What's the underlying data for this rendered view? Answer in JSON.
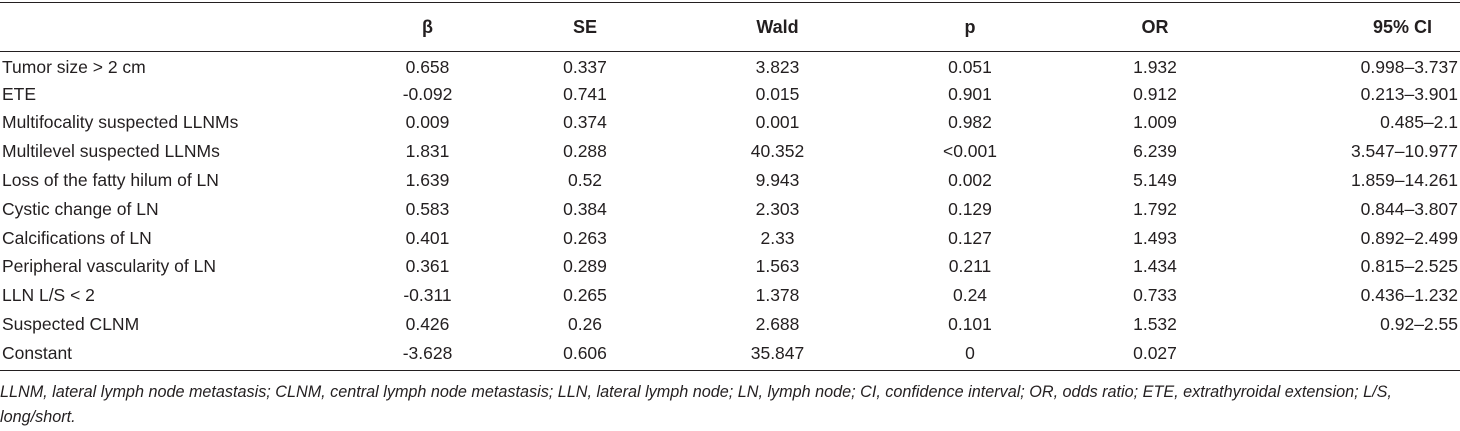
{
  "table": {
    "headers": [
      "",
      "β",
      "SE",
      "Wald",
      "p",
      "OR",
      "95% CI"
    ],
    "rows": [
      {
        "label": "Tumor size > 2 cm",
        "beta": "0.658",
        "se": "0.337",
        "wald": "3.823",
        "p": "0.051",
        "or": "1.932",
        "ci": "0.998–3.737"
      },
      {
        "label": "ETE",
        "beta": "-0.092",
        "se": "0.741",
        "wald": "0.015",
        "p": "0.901",
        "or": "0.912",
        "ci": "0.213–3.901"
      },
      {
        "label": "Multifocality suspected LLNMs",
        "beta": "0.009",
        "se": "0.374",
        "wald": "0.001",
        "p": "0.982",
        "or": "1.009",
        "ci": "0.485–2.1"
      },
      {
        "label": "Multilevel suspected LLNMs",
        "beta": "1.831",
        "se": "0.288",
        "wald": "40.352",
        "p": "<0.001",
        "or": "6.239",
        "ci": "3.547–10.977"
      },
      {
        "label": "Loss of the fatty hilum of LN",
        "beta": "1.639",
        "se": "0.52",
        "wald": "9.943",
        "p": "0.002",
        "or": "5.149",
        "ci": "1.859–14.261"
      },
      {
        "label": "Cystic change of LN",
        "beta": "0.583",
        "se": "0.384",
        "wald": "2.303",
        "p": "0.129",
        "or": "1.792",
        "ci": "0.844–3.807"
      },
      {
        "label": "Calcifications of LN",
        "beta": "0.401",
        "se": "0.263",
        "wald": "2.33",
        "p": "0.127",
        "or": "1.493",
        "ci": "0.892–2.499"
      },
      {
        "label": "Peripheral vascularity of LN",
        "beta": "0.361",
        "se": "0.289",
        "wald": "1.563",
        "p": "0.211",
        "or": "1.434",
        "ci": "0.815–2.525"
      },
      {
        "label": "LLN L/S < 2",
        "beta": "-0.311",
        "se": "0.265",
        "wald": "1.378",
        "p": "0.24",
        "or": "0.733",
        "ci": "0.436–1.232"
      },
      {
        "label": "Suspected CLNM",
        "beta": "0.426",
        "se": "0.26",
        "wald": "2.688",
        "p": "0.101",
        "or": "1.532",
        "ci": "0.92–2.55"
      },
      {
        "label": "Constant",
        "beta": "-3.628",
        "se": "0.606",
        "wald": "35.847",
        "p": "0",
        "or": "0.027",
        "ci": ""
      }
    ]
  },
  "footnote": "LLNM, lateral lymph node metastasis; CLNM, central lymph node metastasis; LLN, lateral lymph node; LN, lymph node; CI, confidence interval; OR, odds ratio; ETE, extrathyroidal extension; L/S, long/short."
}
